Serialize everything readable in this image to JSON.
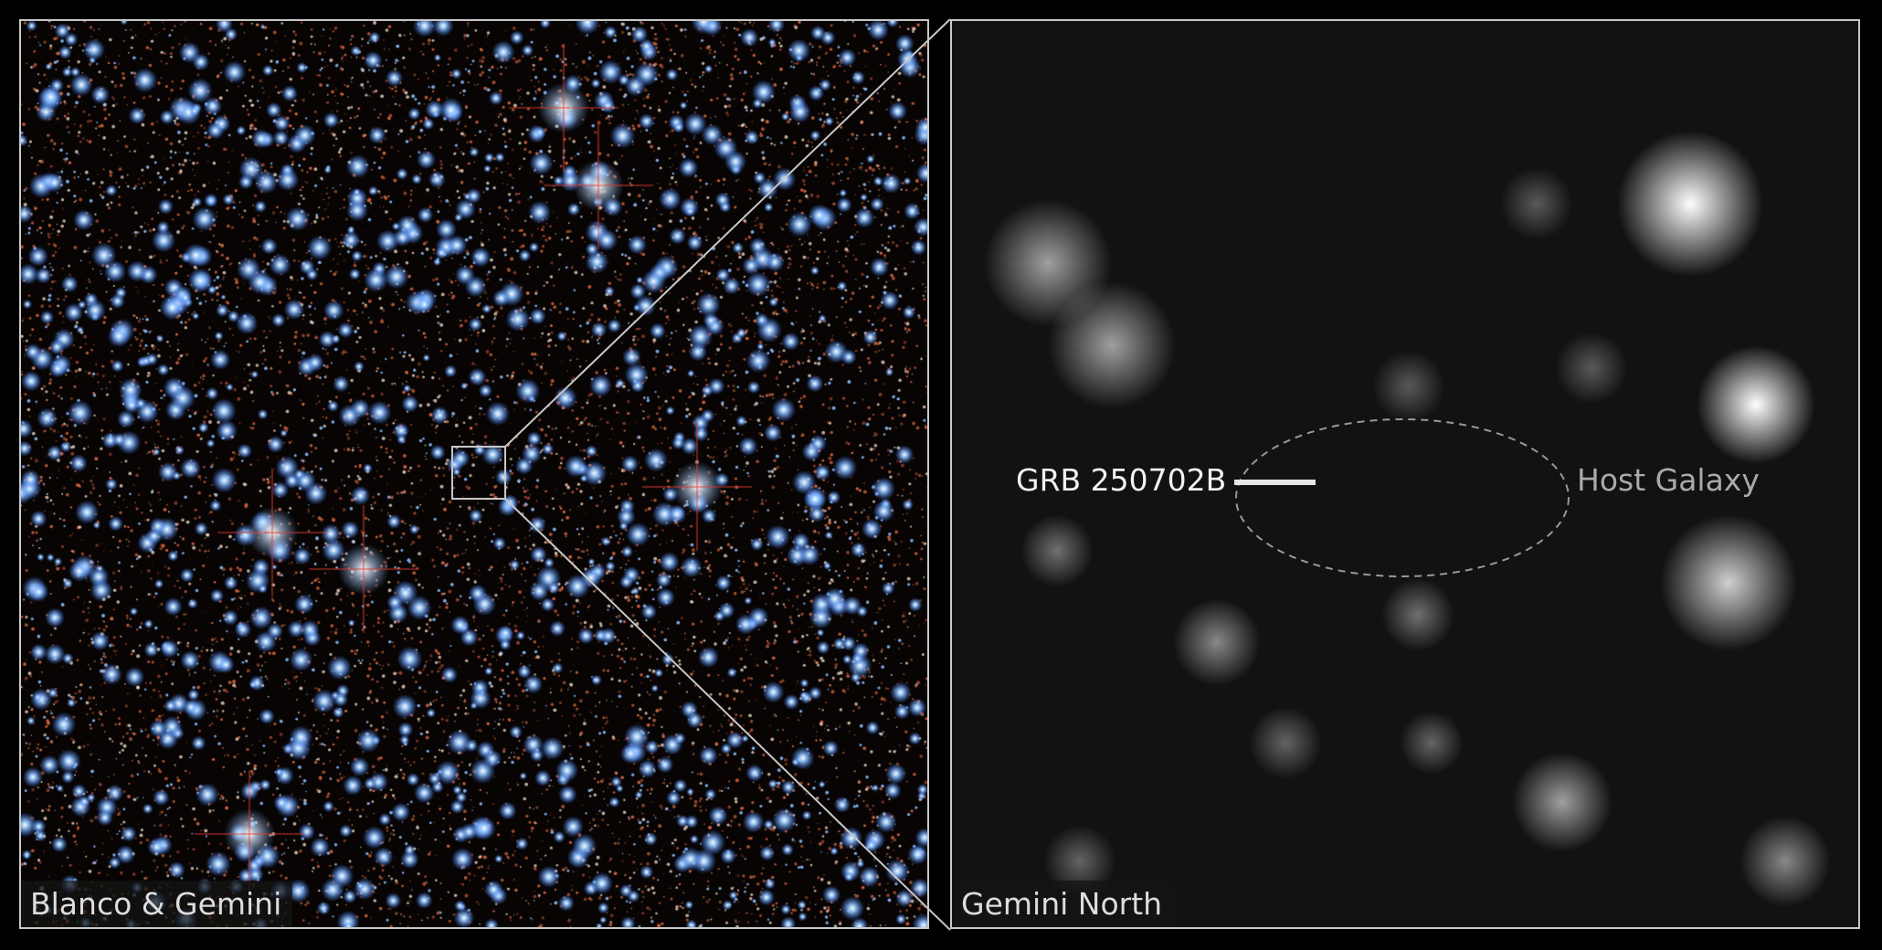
{
  "left_panel": {
    "caption": "Blanco & Gemini"
  },
  "right_panel": {
    "caption": "Gemini North",
    "target_label": "GRB 250702B",
    "galaxy_label": "Host Galaxy"
  },
  "colors": {
    "frame": "#c8c8c8",
    "label_primary": "#f2f2f2",
    "label_secondary": "#aaaaaa"
  }
}
